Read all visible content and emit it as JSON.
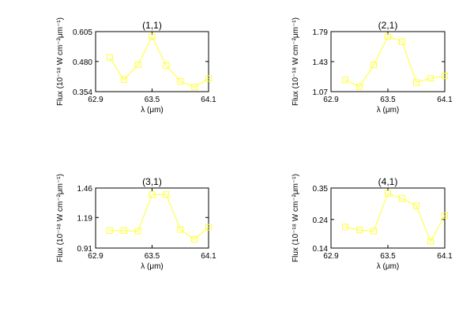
{
  "chart_data": [
    {
      "type": "line",
      "title": "(1,1)",
      "xlabel": "λ (μm)",
      "ylabel": "Flux (10⁻¹⁸ W cm⁻²μm⁻¹)",
      "xlim": [
        62.9,
        64.1
      ],
      "ylim": [
        0.354,
        0.605
      ],
      "xticks": [
        "62.9",
        "63.5",
        "64.1"
      ],
      "yticks": [
        "0.354",
        "0.480",
        "0.605"
      ],
      "series": [
        {
          "x": [
            63.05,
            63.2,
            63.35,
            63.5,
            63.65,
            63.8,
            63.95,
            64.1
          ],
          "y": [
            0.497,
            0.404,
            0.466,
            0.585,
            0.463,
            0.397,
            0.373,
            0.409
          ]
        }
      ]
    },
    {
      "type": "line",
      "title": "(2,1)",
      "xlabel": "λ (μm)",
      "ylabel": "Flux (10⁻¹⁸ W cm⁻²μm⁻¹)",
      "xlim": [
        62.9,
        64.1
      ],
      "ylim": [
        1.07,
        1.79
      ],
      "xticks": [
        "62.9",
        "63.5",
        "64.1"
      ],
      "yticks": [
        "1.07",
        "1.43",
        "1.79"
      ],
      "series": [
        {
          "x": [
            63.05,
            63.2,
            63.35,
            63.5,
            63.65,
            63.8,
            63.95,
            64.1
          ],
          "y": [
            1.21,
            1.13,
            1.39,
            1.73,
            1.67,
            1.18,
            1.23,
            1.26
          ]
        }
      ]
    },
    {
      "type": "line",
      "title": "(3,1)",
      "xlabel": "λ (μm)",
      "ylabel": "Flux (10⁻¹⁸ W cm⁻²μm⁻¹)",
      "xlim": [
        62.9,
        64.1
      ],
      "ylim": [
        0.91,
        1.46
      ],
      "xticks": [
        "62.9",
        "63.5",
        "64.1"
      ],
      "yticks": [
        "0.91",
        "1.19",
        "1.46"
      ],
      "series": [
        {
          "x": [
            63.05,
            63.2,
            63.35,
            63.5,
            63.65,
            63.8,
            63.95,
            64.1
          ],
          "y": [
            1.07,
            1.07,
            1.065,
            1.4,
            1.4,
            1.08,
            0.99,
            1.1
          ]
        }
      ]
    },
    {
      "type": "line",
      "title": "(4,1)",
      "xlabel": "λ (μm)",
      "ylabel": "Flux (10⁻¹⁸ W cm⁻²μm⁻¹)",
      "xlim": [
        62.9,
        64.1
      ],
      "ylim": [
        0.14,
        0.35
      ],
      "xticks": [
        "62.9",
        "63.5",
        "64.1"
      ],
      "yticks": [
        "0.14",
        "0.24",
        "0.35"
      ],
      "series": [
        {
          "x": [
            63.05,
            63.2,
            63.35,
            63.5,
            63.65,
            63.8,
            63.95,
            64.1
          ],
          "y": [
            0.214,
            0.203,
            0.199,
            0.331,
            0.313,
            0.288,
            0.163,
            0.254
          ]
        }
      ]
    }
  ],
  "colors": {
    "series_line": "#ffff33",
    "axes": "#000000"
  }
}
